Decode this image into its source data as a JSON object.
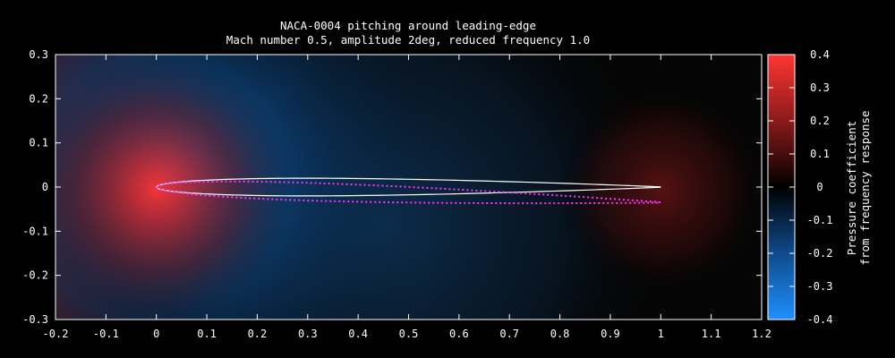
{
  "chart_data": {
    "type": "heatmap",
    "title": "NACA-0004 pitching around leading-edge",
    "subtitle": "Mach number 0.5, amplitude 2deg, reduced frequency 1.0",
    "xlim": [
      -0.2,
      1.2
    ],
    "ylim": [
      -0.3,
      0.3
    ],
    "xticks": [
      "-0.2",
      "-0.1",
      "0",
      "0.1",
      "0.2",
      "0.3",
      "0.4",
      "0.5",
      "0.6",
      "0.7",
      "0.8",
      "0.9",
      "1",
      "1.1",
      "1.2"
    ],
    "yticks": [
      "0.3",
      "0.2",
      "0.1",
      "0",
      "-0.1",
      "-0.2",
      "-0.3"
    ],
    "xtick_values": [
      -0.2,
      -0.1,
      0,
      0.1,
      0.2,
      0.3,
      0.4,
      0.5,
      0.6,
      0.7,
      0.8,
      0.9,
      1.0,
      1.1,
      1.2
    ],
    "ytick_values": [
      0.3,
      0.2,
      0.1,
      0,
      -0.1,
      -0.2,
      -0.3
    ],
    "colorbar": {
      "label_line1": "Pressure coefficient",
      "label_line2": "from frequency response",
      "range": [
        -0.4,
        0.4
      ],
      "ticks": [
        "0.4",
        "0.3",
        "0.2",
        "0.1",
        "0",
        "-0.1",
        "-0.2",
        "-0.3",
        "-0.4"
      ],
      "tick_values": [
        0.4,
        0.3,
        0.2,
        0.1,
        0,
        -0.1,
        -0.2,
        -0.3,
        -0.4
      ],
      "color_high": "#ff3535",
      "color_zero": "#000000",
      "color_low": "#1f8fff"
    },
    "series": [
      {
        "style": "solid",
        "color": "#ffffff",
        "airfoil": "NACA-0004",
        "pitch_deg": 0,
        "chord": 1.0
      },
      {
        "style": "dotted",
        "color": "#ff33ff",
        "airfoil": "NACA-0004",
        "pitch_deg": 2,
        "chord": 1.0
      }
    ]
  }
}
